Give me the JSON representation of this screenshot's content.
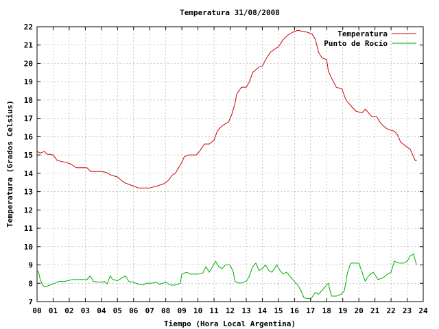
{
  "chart_data": {
    "type": "line",
    "title": "Temperatura 31/08/2008",
    "xlabel": "Tiempo (Hora Local Argentina)",
    "ylabel": "Temperatura (Grados Celsius)",
    "xlim": [
      0,
      24
    ],
    "ylim": [
      7,
      22
    ],
    "x_ticks": [
      "00",
      "01",
      "02",
      "03",
      "04",
      "05",
      "06",
      "07",
      "08",
      "09",
      "10",
      "11",
      "12",
      "13",
      "14",
      "15",
      "16",
      "17",
      "18",
      "19",
      "20",
      "21",
      "22",
      "23",
      "24"
    ],
    "y_ticks": [
      "7",
      "8",
      "9",
      "10",
      "11",
      "12",
      "13",
      "14",
      "15",
      "16",
      "17",
      "18",
      "19",
      "20",
      "21",
      "22"
    ],
    "grid": true,
    "legend_position": "top-right",
    "series": [
      {
        "name": "Temperatura",
        "color": "#cc0000",
        "points": [
          [
            0.0,
            15.2
          ],
          [
            0.2,
            15.1
          ],
          [
            0.45,
            15.2
          ],
          [
            0.6,
            15.05
          ],
          [
            1.0,
            15.0
          ],
          [
            1.25,
            14.7
          ],
          [
            1.8,
            14.6
          ],
          [
            2.1,
            14.5
          ],
          [
            2.45,
            14.3
          ],
          [
            3.1,
            14.3
          ],
          [
            3.35,
            14.1
          ],
          [
            4.0,
            14.1
          ],
          [
            4.3,
            14.05
          ],
          [
            4.6,
            13.9
          ],
          [
            5.0,
            13.8
          ],
          [
            5.2,
            13.65
          ],
          [
            5.4,
            13.5
          ],
          [
            5.7,
            13.4
          ],
          [
            6.0,
            13.3
          ],
          [
            6.3,
            13.2
          ],
          [
            7.0,
            13.2
          ],
          [
            7.4,
            13.3
          ],
          [
            7.8,
            13.4
          ],
          [
            8.0,
            13.5
          ],
          [
            8.2,
            13.65
          ],
          [
            8.4,
            13.9
          ],
          [
            8.6,
            14.0
          ],
          [
            8.8,
            14.3
          ],
          [
            9.0,
            14.6
          ],
          [
            9.15,
            14.9
          ],
          [
            9.4,
            15.0
          ],
          [
            9.9,
            15.0
          ],
          [
            10.1,
            15.2
          ],
          [
            10.4,
            15.6
          ],
          [
            10.7,
            15.6
          ],
          [
            11.0,
            15.8
          ],
          [
            11.2,
            16.3
          ],
          [
            11.5,
            16.6
          ],
          [
            11.9,
            16.8
          ],
          [
            12.1,
            17.2
          ],
          [
            12.3,
            17.8
          ],
          [
            12.4,
            18.3
          ],
          [
            12.7,
            18.7
          ],
          [
            13.0,
            18.7
          ],
          [
            13.2,
            19.0
          ],
          [
            13.4,
            19.5
          ],
          [
            13.8,
            19.8
          ],
          [
            14.0,
            19.85
          ],
          [
            14.2,
            20.2
          ],
          [
            14.5,
            20.6
          ],
          [
            14.8,
            20.8
          ],
          [
            15.0,
            20.9
          ],
          [
            15.3,
            21.3
          ],
          [
            15.6,
            21.55
          ],
          [
            15.9,
            21.7
          ],
          [
            16.2,
            21.8
          ],
          [
            16.5,
            21.75
          ],
          [
            16.8,
            21.7
          ],
          [
            17.1,
            21.6
          ],
          [
            17.3,
            21.3
          ],
          [
            17.5,
            20.6
          ],
          [
            17.7,
            20.3
          ],
          [
            18.0,
            20.2
          ],
          [
            18.1,
            19.6
          ],
          [
            18.3,
            19.2
          ],
          [
            18.6,
            18.7
          ],
          [
            18.95,
            18.6
          ],
          [
            19.2,
            18.0
          ],
          [
            19.5,
            17.7
          ],
          [
            19.8,
            17.4
          ],
          [
            20.0,
            17.35
          ],
          [
            20.2,
            17.3
          ],
          [
            20.4,
            17.5
          ],
          [
            20.6,
            17.3
          ],
          [
            20.8,
            17.1
          ],
          [
            21.1,
            17.1
          ],
          [
            21.3,
            16.8
          ],
          [
            21.5,
            16.6
          ],
          [
            21.8,
            16.4
          ],
          [
            22.2,
            16.3
          ],
          [
            22.4,
            16.1
          ],
          [
            22.6,
            15.7
          ],
          [
            22.9,
            15.5
          ],
          [
            23.2,
            15.3
          ],
          [
            23.5,
            14.7
          ],
          [
            23.6,
            14.7
          ]
        ]
      },
      {
        "name": "Punto de Rocío",
        "color": "#00aa00",
        "points": [
          [
            0.0,
            8.7
          ],
          [
            0.1,
            8.6
          ],
          [
            0.2,
            8.2
          ],
          [
            0.35,
            7.9
          ],
          [
            0.5,
            7.8
          ],
          [
            0.8,
            7.9
          ],
          [
            1.1,
            8.0
          ],
          [
            1.35,
            8.1
          ],
          [
            1.7,
            8.1
          ],
          [
            2.2,
            8.2
          ],
          [
            2.7,
            8.2
          ],
          [
            3.1,
            8.2
          ],
          [
            3.3,
            8.4
          ],
          [
            3.5,
            8.1
          ],
          [
            4.0,
            8.05
          ],
          [
            4.2,
            8.1
          ],
          [
            4.35,
            7.95
          ],
          [
            4.55,
            8.4
          ],
          [
            4.7,
            8.2
          ],
          [
            5.0,
            8.15
          ],
          [
            5.3,
            8.3
          ],
          [
            5.5,
            8.4
          ],
          [
            5.7,
            8.1
          ],
          [
            6.0,
            8.05
          ],
          [
            6.3,
            7.95
          ],
          [
            6.6,
            7.9
          ],
          [
            6.8,
            8.0
          ],
          [
            7.1,
            8.0
          ],
          [
            7.4,
            8.05
          ],
          [
            7.6,
            7.95
          ],
          [
            8.0,
            8.05
          ],
          [
            8.3,
            7.9
          ],
          [
            8.6,
            7.9
          ],
          [
            8.9,
            8.0
          ],
          [
            9.0,
            8.5
          ],
          [
            9.3,
            8.6
          ],
          [
            9.5,
            8.5
          ],
          [
            10.0,
            8.5
          ],
          [
            10.3,
            8.55
          ],
          [
            10.5,
            8.9
          ],
          [
            10.7,
            8.6
          ],
          [
            10.9,
            8.9
          ],
          [
            11.1,
            9.2
          ],
          [
            11.3,
            8.9
          ],
          [
            11.5,
            8.8
          ],
          [
            11.7,
            9.0
          ],
          [
            12.0,
            9.0
          ],
          [
            12.2,
            8.6
          ],
          [
            12.3,
            8.1
          ],
          [
            12.6,
            8.0
          ],
          [
            13.0,
            8.1
          ],
          [
            13.2,
            8.4
          ],
          [
            13.4,
            8.9
          ],
          [
            13.6,
            9.1
          ],
          [
            13.8,
            8.7
          ],
          [
            14.0,
            8.8
          ],
          [
            14.2,
            9.0
          ],
          [
            14.4,
            8.7
          ],
          [
            14.6,
            8.6
          ],
          [
            14.9,
            9.0
          ],
          [
            15.1,
            8.7
          ],
          [
            15.3,
            8.5
          ],
          [
            15.5,
            8.6
          ],
          [
            15.7,
            8.4
          ],
          [
            15.9,
            8.2
          ],
          [
            16.2,
            7.9
          ],
          [
            16.4,
            7.6
          ],
          [
            16.6,
            7.2
          ],
          [
            17.0,
            7.15
          ],
          [
            17.1,
            7.25
          ],
          [
            17.3,
            7.5
          ],
          [
            17.5,
            7.4
          ],
          [
            17.7,
            7.6
          ],
          [
            17.9,
            7.8
          ],
          [
            18.1,
            8.0
          ],
          [
            18.3,
            7.3
          ],
          [
            18.6,
            7.3
          ],
          [
            18.9,
            7.4
          ],
          [
            19.1,
            7.6
          ],
          [
            19.2,
            8.1
          ],
          [
            19.3,
            8.6
          ],
          [
            19.5,
            9.1
          ],
          [
            20.0,
            9.1
          ],
          [
            20.2,
            8.6
          ],
          [
            20.4,
            8.1
          ],
          [
            20.6,
            8.4
          ],
          [
            20.9,
            8.6
          ],
          [
            21.2,
            8.2
          ],
          [
            21.5,
            8.3
          ],
          [
            21.8,
            8.5
          ],
          [
            22.0,
            8.6
          ],
          [
            22.2,
            9.2
          ],
          [
            22.5,
            9.1
          ],
          [
            22.8,
            9.1
          ],
          [
            23.0,
            9.2
          ],
          [
            23.2,
            9.5
          ],
          [
            23.4,
            9.6
          ],
          [
            23.55,
            9.1
          ],
          [
            23.6,
            9.0
          ]
        ]
      }
    ]
  }
}
